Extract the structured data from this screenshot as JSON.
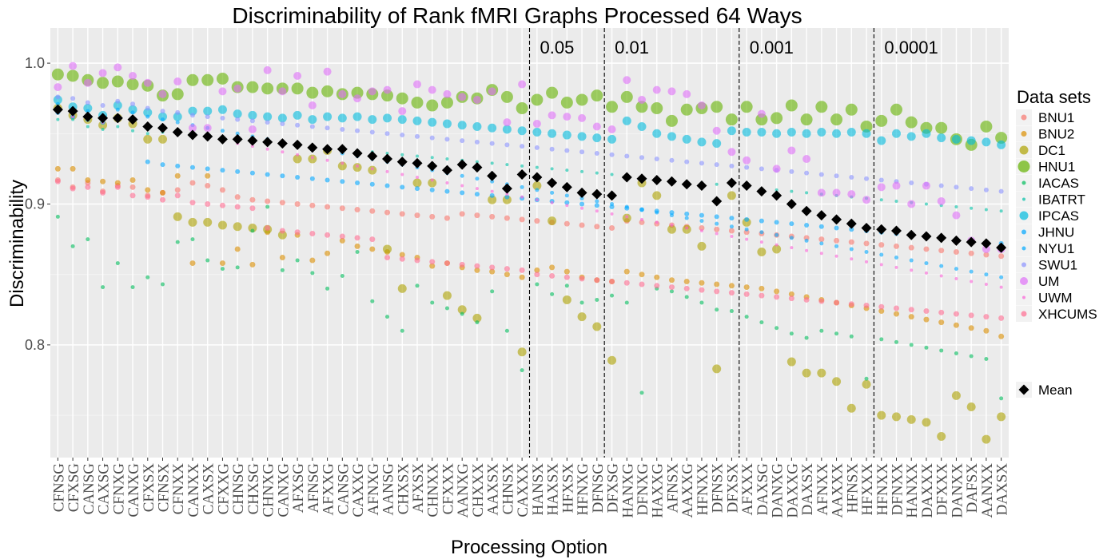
{
  "chart_data": {
    "type": "scatter",
    "title": "Discriminability of Rank fMRI Graphs Processed 64 Ways",
    "xlabel": "Processing Option",
    "ylabel": "Discriminability",
    "ylim": [
      0.72,
      1.025
    ],
    "yticks": [
      0.8,
      0.9,
      1.0
    ],
    "ytick_labels": [
      "0.8",
      "0.9",
      "1.0"
    ],
    "grid": true,
    "legend_placement": "right",
    "legend_title": "Data sets",
    "categories": [
      "CFNSG",
      "CFXSG",
      "CANSG",
      "CAXSG",
      "CFNXG",
      "CANXG",
      "CFXSX",
      "CFNSX",
      "CFNXX",
      "CANXX",
      "CAXSX",
      "CFXXG",
      "CHNSG",
      "CHXSG",
      "CHNXG",
      "CANXG",
      "AFXSG",
      "AFNSG",
      "AFXXG",
      "CANSG",
      "CAXXG",
      "AFNXG",
      "AANSG",
      "CHXSX",
      "AFXSX",
      "CHNXX",
      "CFXXX",
      "AANXG",
      "CHXXX",
      "AAXSX",
      "CHNSX",
      "CAXXX",
      "HANSX",
      "HAXSX",
      "HFXSX",
      "HFNXG",
      "DFNSG",
      "DFXSG",
      "HANXG",
      "DFNXG",
      "HAXXG",
      "AFNSX",
      "AAXXG",
      "HFNXX",
      "DFNSX",
      "DFXSX",
      "AFXXX",
      "DAXSG",
      "DANXG",
      "DAXXG",
      "DAXSX",
      "AFNXX",
      "AAXXX",
      "HFNSX",
      "HFXXX",
      "HFNXX",
      "DFNXX",
      "HANXX",
      "DAXXX",
      "DFXXX",
      "DANXX",
      "DAFSX",
      "AANXX",
      "DAXSX"
    ],
    "mean_values": [
      0.967,
      0.966,
      0.962,
      0.961,
      0.961,
      0.96,
      0.955,
      0.954,
      0.951,
      0.949,
      0.948,
      0.946,
      0.946,
      0.945,
      0.944,
      0.943,
      0.942,
      0.94,
      0.939,
      0.939,
      0.936,
      0.934,
      0.932,
      0.93,
      0.929,
      0.927,
      0.924,
      0.928,
      0.926,
      0.92,
      0.911,
      0.921,
      0.919,
      0.915,
      0.912,
      0.908,
      0.907,
      0.906,
      0.919,
      0.918,
      0.917,
      0.916,
      0.914,
      0.913,
      0.902,
      0.915,
      0.913,
      0.909,
      0.906,
      0.9,
      0.895,
      0.892,
      0.889,
      0.886,
      0.883,
      0.882,
      0.881,
      0.878,
      0.877,
      0.876,
      0.874,
      0.873,
      0.872,
      0.869
    ],
    "vlines": [
      {
        "after_index": 31,
        "label": "0.05"
      },
      {
        "after_index": 36,
        "label": "0.01"
      },
      {
        "after_index": 45,
        "label": "0.001"
      },
      {
        "after_index": 54,
        "label": "0.0001"
      }
    ],
    "series": [
      {
        "name": "BNU1",
        "color": "#F8766D",
        "size": 6,
        "values": [
          0.917,
          0.912,
          0.915,
          0.909,
          0.913,
          0.912,
          0.906,
          0.908,
          0.91,
          0.915,
          0.913,
          0.91,
          0.905,
          0.903,
          0.902,
          0.901,
          0.9,
          0.899,
          0.898,
          0.897,
          0.896,
          0.895,
          0.894,
          0.893,
          0.892,
          0.891,
          0.89,
          0.893,
          0.892,
          0.891,
          0.89,
          0.889,
          0.888,
          0.887,
          0.886,
          0.885,
          0.884,
          0.883,
          0.888,
          0.887,
          0.886,
          0.885,
          0.884,
          0.883,
          0.882,
          0.881,
          0.88,
          0.879,
          0.878,
          0.877,
          0.876,
          0.875,
          0.874,
          0.873,
          0.872,
          0.871,
          0.87,
          0.869,
          0.868,
          0.867,
          0.866,
          0.865,
          0.864,
          0.863
        ]
      },
      {
        "name": "BNU2",
        "color": "#DB8E00",
        "size": 6,
        "values": [
          0.925,
          0.925,
          0.917,
          0.916,
          0.915,
          0.917,
          0.91,
          0.908,
          0.92,
          0.858,
          0.92,
          0.858,
          0.868,
          0.857,
          0.88,
          0.862,
          0.878,
          0.86,
          0.865,
          0.874,
          0.87,
          0.868,
          0.866,
          0.864,
          0.862,
          0.856,
          0.858,
          0.855,
          0.853,
          0.852,
          0.85,
          0.848,
          0.853,
          0.855,
          0.852,
          0.848,
          0.846,
          0.845,
          0.852,
          0.85,
          0.848,
          0.846,
          0.845,
          0.844,
          0.843,
          0.842,
          0.841,
          0.84,
          0.838,
          0.836,
          0.834,
          0.832,
          0.83,
          0.828,
          0.826,
          0.824,
          0.822,
          0.82,
          0.818,
          0.816,
          0.814,
          0.812,
          0.81,
          0.806
        ]
      },
      {
        "name": "DC1",
        "color": "#AEA200",
        "size": 10,
        "values": [
          0.968,
          0.963,
          0.96,
          0.956,
          0.961,
          0.957,
          0.946,
          0.946,
          0.891,
          0.887,
          0.887,
          0.885,
          0.884,
          0.883,
          0.882,
          0.878,
          0.932,
          0.932,
          0.938,
          0.927,
          0.926,
          0.924,
          0.868,
          0.84,
          0.915,
          0.915,
          0.835,
          0.825,
          0.819,
          0.903,
          0.903,
          0.795,
          0.913,
          0.888,
          0.832,
          0.82,
          0.813,
          0.789,
          0.89,
          0.915,
          0.906,
          0.882,
          0.882,
          0.87,
          0.783,
          0.906,
          0.887,
          0.866,
          0.868,
          0.788,
          0.78,
          0.78,
          0.774,
          0.755,
          0.772,
          0.75,
          0.749,
          0.747,
          0.745,
          0.735,
          0.764,
          0.756,
          0.733,
          0.749
        ]
      },
      {
        "name": "HNU1",
        "color": "#64B200",
        "size": 14,
        "values": [
          0.992,
          0.991,
          0.988,
          0.986,
          0.987,
          0.985,
          0.984,
          0.977,
          0.978,
          0.988,
          0.988,
          0.989,
          0.983,
          0.983,
          0.982,
          0.982,
          0.982,
          0.979,
          0.98,
          0.978,
          0.979,
          0.978,
          0.977,
          0.975,
          0.972,
          0.97,
          0.972,
          0.976,
          0.975,
          0.981,
          0.976,
          0.968,
          0.974,
          0.979,
          0.972,
          0.974,
          0.977,
          0.969,
          0.976,
          0.969,
          0.968,
          0.959,
          0.967,
          0.968,
          0.969,
          0.96,
          0.969,
          0.96,
          0.961,
          0.97,
          0.96,
          0.969,
          0.96,
          0.967,
          0.955,
          0.959,
          0.967,
          0.958,
          0.954,
          0.954,
          0.946,
          0.942,
          0.955,
          0.947
        ]
      },
      {
        "name": "IACAS",
        "color": "#00BD5C",
        "size": 4,
        "values": [
          0.891,
          0.87,
          0.875,
          0.841,
          0.858,
          0.841,
          0.848,
          0.843,
          0.873,
          0.875,
          0.86,
          0.854,
          0.855,
          0.881,
          0.898,
          0.853,
          0.86,
          0.851,
          0.84,
          0.849,
          0.866,
          0.831,
          0.82,
          0.81,
          0.842,
          0.83,
          0.826,
          0.822,
          0.816,
          0.838,
          0.81,
          0.782,
          0.843,
          0.836,
          0.842,
          0.83,
          0.832,
          0.835,
          0.83,
          0.766,
          0.84,
          0.838,
          0.834,
          0.83,
          0.825,
          0.824,
          0.82,
          0.816,
          0.812,
          0.808,
          0.805,
          0.81,
          0.808,
          0.806,
          0.776,
          0.804,
          0.802,
          0.8,
          0.798,
          0.796,
          0.794,
          0.792,
          0.79,
          0.762
        ]
      },
      {
        "name": "IBATRT",
        "color": "#00C1A7",
        "size": 3,
        "values": [
          0.96,
          0.96,
          0.955,
          0.953,
          0.955,
          0.952,
          0.95,
          0.951,
          0.95,
          0.949,
          0.948,
          0.947,
          0.946,
          0.945,
          0.944,
          0.943,
          0.942,
          0.941,
          0.94,
          0.939,
          0.938,
          0.937,
          0.936,
          0.935,
          0.934,
          0.933,
          0.932,
          0.931,
          0.93,
          0.929,
          0.928,
          0.927,
          0.926,
          0.925,
          0.924,
          0.923,
          0.922,
          0.921,
          0.92,
          0.919,
          0.918,
          0.917,
          0.916,
          0.915,
          0.914,
          0.913,
          0.912,
          0.911,
          0.91,
          0.909,
          0.908,
          0.907,
          0.906,
          0.905,
          0.904,
          0.903,
          0.902,
          0.901,
          0.9,
          0.899,
          0.898,
          0.897,
          0.896,
          0.895
        ]
      },
      {
        "name": "IPCAS",
        "color": "#00BADE",
        "size": 10,
        "values": [
          0.974,
          0.969,
          0.968,
          0.963,
          0.97,
          0.967,
          0.965,
          0.962,
          0.962,
          0.966,
          0.966,
          0.967,
          0.964,
          0.963,
          0.962,
          0.961,
          0.963,
          0.96,
          0.962,
          0.961,
          0.962,
          0.96,
          0.961,
          0.96,
          0.959,
          0.958,
          0.957,
          0.956,
          0.955,
          0.954,
          0.953,
          0.952,
          0.951,
          0.95,
          0.949,
          0.948,
          0.947,
          0.946,
          0.959,
          0.955,
          0.95,
          0.948,
          0.946,
          0.944,
          0.943,
          0.952,
          0.951,
          0.951,
          0.95,
          0.951,
          0.95,
          0.951,
          0.95,
          0.951,
          0.95,
          0.945,
          0.95,
          0.948,
          0.95,
          0.947,
          0.946,
          0.945,
          0.944,
          0.942
        ]
      },
      {
        "name": "JHNU",
        "color": "#00A6FF",
        "size": 5,
        "values": [
          0.965,
          0.962,
          0.96,
          0.958,
          0.962,
          0.961,
          0.93,
          0.928,
          0.927,
          0.926,
          0.925,
          0.924,
          0.923,
          0.922,
          0.921,
          0.92,
          0.919,
          0.918,
          0.917,
          0.916,
          0.915,
          0.914,
          0.913,
          0.912,
          0.911,
          0.91,
          0.909,
          0.908,
          0.907,
          0.906,
          0.905,
          0.904,
          0.903,
          0.902,
          0.901,
          0.9,
          0.899,
          0.898,
          0.897,
          0.896,
          0.895,
          0.894,
          0.893,
          0.892,
          0.891,
          0.89,
          0.889,
          0.888,
          0.887,
          0.886,
          0.885,
          0.884,
          0.883,
          0.882,
          0.881,
          0.88,
          0.879,
          0.878,
          0.877,
          0.876,
          0.875,
          0.874,
          0.873,
          0.872
        ]
      },
      {
        "name": "NYU1",
        "color": "#00A9FF",
        "size": 4,
        "values": [
          0.971,
          0.968,
          0.966,
          0.963,
          0.967,
          0.965,
          0.962,
          0.96,
          0.958,
          0.956,
          0.954,
          0.952,
          0.95,
          0.948,
          0.946,
          0.944,
          0.942,
          0.94,
          0.938,
          0.936,
          0.934,
          0.932,
          0.93,
          0.928,
          0.926,
          0.924,
          0.922,
          0.92,
          0.918,
          0.916,
          0.914,
          0.912,
          0.91,
          0.908,
          0.906,
          0.904,
          0.902,
          0.9,
          0.898,
          0.896,
          0.894,
          0.892,
          0.89,
          0.888,
          0.886,
          0.884,
          0.882,
          0.88,
          0.878,
          0.876,
          0.874,
          0.872,
          0.87,
          0.868,
          0.866,
          0.864,
          0.862,
          0.86,
          0.858,
          0.856,
          0.854,
          0.852,
          0.85,
          0.848
        ]
      },
      {
        "name": "SWU1",
        "color": "#8B93FF",
        "size": 5,
        "values": [
          0.976,
          0.975,
          0.972,
          0.97,
          0.973,
          0.971,
          0.968,
          0.966,
          0.965,
          0.963,
          0.962,
          0.961,
          0.96,
          0.959,
          0.958,
          0.957,
          0.956,
          0.955,
          0.954,
          0.953,
          0.952,
          0.951,
          0.95,
          0.949,
          0.948,
          0.947,
          0.946,
          0.945,
          0.944,
          0.943,
          0.942,
          0.941,
          0.94,
          0.939,
          0.938,
          0.937,
          0.936,
          0.935,
          0.934,
          0.933,
          0.932,
          0.931,
          0.93,
          0.929,
          0.928,
          0.927,
          0.926,
          0.925,
          0.924,
          0.923,
          0.922,
          0.921,
          0.92,
          0.919,
          0.918,
          0.917,
          0.916,
          0.915,
          0.914,
          0.913,
          0.912,
          0.911,
          0.91,
          0.909
        ]
      },
      {
        "name": "UM",
        "color": "#DF70F8",
        "size": 9,
        "values": [
          0.983,
          0.998,
          0.986,
          0.993,
          0.997,
          0.991,
          0.986,
          0.978,
          0.987,
          0.954,
          0.954,
          0.98,
          0.982,
          0.953,
          0.995,
          0.98,
          0.991,
          0.97,
          0.994,
          0.978,
          0.975,
          0.98,
          0.981,
          0.966,
          0.985,
          0.981,
          0.978,
          0.976,
          0.974,
          0.98,
          0.958,
          0.985,
          0.957,
          0.963,
          0.962,
          0.961,
          0.955,
          0.953,
          0.988,
          0.974,
          0.981,
          0.98,
          0.978,
          0.97,
          0.952,
          0.937,
          0.931,
          0.964,
          0.925,
          0.938,
          0.932,
          0.908,
          0.908,
          0.907,
          0.903,
          0.912,
          0.913,
          0.9,
          0.913,
          0.902,
          0.892,
          0.874,
          0.868,
          0.868
        ]
      },
      {
        "name": "UWM",
        "color": "#FB61D7",
        "size": 3,
        "values": [
          0.965,
          0.962,
          0.96,
          0.958,
          0.96,
          0.958,
          0.955,
          0.953,
          0.951,
          0.949,
          0.947,
          0.945,
          0.943,
          0.941,
          0.939,
          0.937,
          0.935,
          0.933,
          0.931,
          0.929,
          0.927,
          0.925,
          0.923,
          0.921,
          0.919,
          0.917,
          0.915,
          0.913,
          0.911,
          0.909,
          0.907,
          0.905,
          0.903,
          0.901,
          0.899,
          0.897,
          0.895,
          0.893,
          0.891,
          0.889,
          0.887,
          0.885,
          0.883,
          0.881,
          0.879,
          0.877,
          0.875,
          0.873,
          0.871,
          0.869,
          0.867,
          0.865,
          0.863,
          0.861,
          0.859,
          0.857,
          0.855,
          0.853,
          0.851,
          0.849,
          0.847,
          0.845,
          0.843,
          0.841
        ]
      },
      {
        "name": "XHCUMS",
        "color": "#FF6C91",
        "size": 6,
        "values": [
          0.916,
          0.911,
          0.912,
          0.908,
          0.912,
          0.906,
          0.905,
          0.903,
          0.906,
          0.901,
          0.9,
          0.899,
          0.898,
          0.897,
          0.883,
          0.881,
          0.88,
          0.879,
          0.878,
          0.877,
          0.876,
          0.875,
          0.862,
          0.861,
          0.86,
          0.859,
          0.858,
          0.857,
          0.856,
          0.855,
          0.854,
          0.853,
          0.85,
          0.849,
          0.848,
          0.847,
          0.846,
          0.845,
          0.844,
          0.843,
          0.842,
          0.841,
          0.84,
          0.839,
          0.838,
          0.837,
          0.836,
          0.835,
          0.834,
          0.833,
          0.832,
          0.831,
          0.83,
          0.829,
          0.828,
          0.827,
          0.826,
          0.825,
          0.824,
          0.823,
          0.822,
          0.821,
          0.82,
          0.819
        ]
      }
    ],
    "mean_series_name": "Mean",
    "mean_color": "#000000"
  }
}
